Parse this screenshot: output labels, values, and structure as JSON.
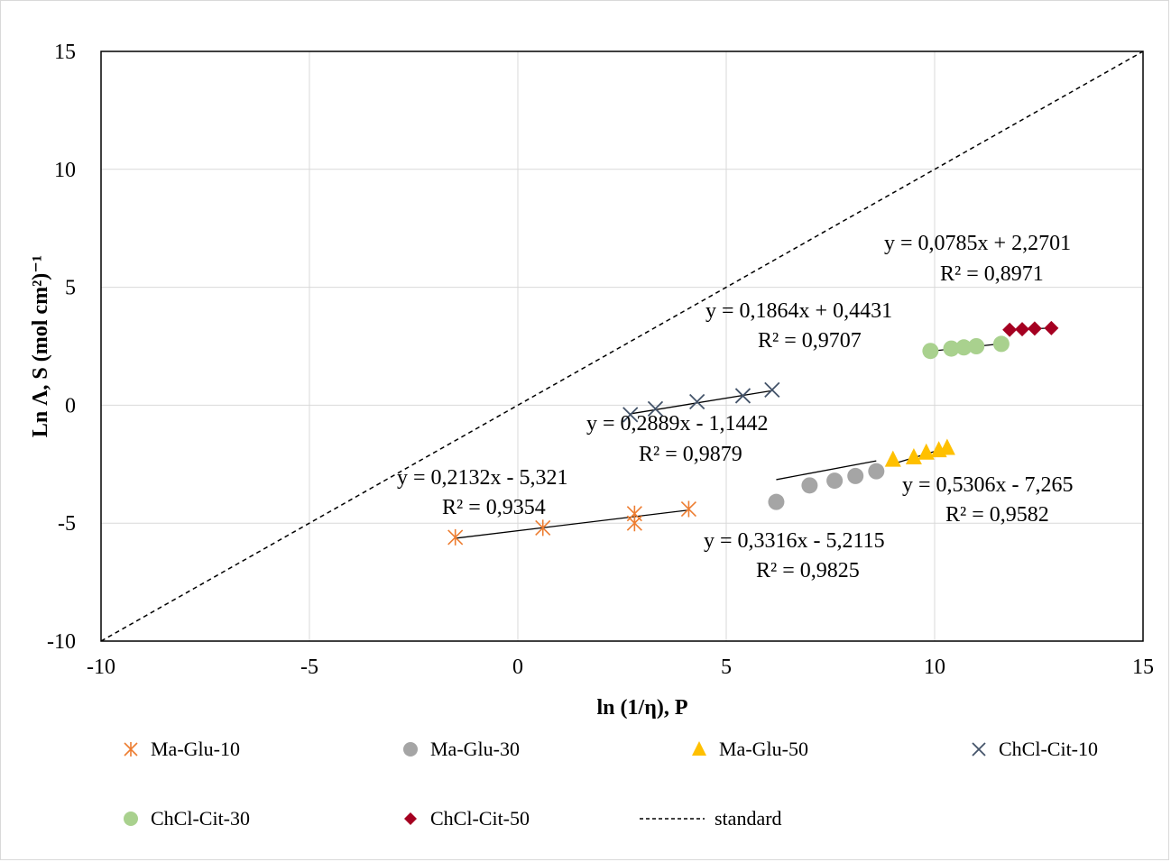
{
  "chart_data": {
    "type": "scatter",
    "xlabel": "ln (1/η), P",
    "ylabel": "Ln Λ, S (mol cm²)⁻¹",
    "xlim": [
      -10,
      15
    ],
    "ylim": [
      -10,
      15
    ],
    "xticks": [
      "-10",
      "-5",
      "0",
      "5",
      "10",
      "15"
    ],
    "yticks": [
      "-10",
      "-5",
      "0",
      "5",
      "10",
      "15"
    ],
    "grid": true,
    "legend_position": "bottom",
    "series": [
      {
        "name": "Ma-Glu-10",
        "marker": "asterisk",
        "color": "#ed7d31",
        "points": [
          [
            -1.5,
            -5.6
          ],
          [
            0.6,
            -5.2
          ],
          [
            2.8,
            -4.6
          ],
          [
            2.8,
            -5.0
          ],
          [
            4.1,
            -4.4
          ]
        ],
        "trend": {
          "slope": 0.2132,
          "intercept": -5.321,
          "x_range": [
            -1.5,
            4.1
          ]
        },
        "equation": "y = 0,2132x - 5,321",
        "r2": "R² = 0,9354"
      },
      {
        "name": "Ma-Glu-30",
        "marker": "circle",
        "color": "#a5a5a5",
        "points": [
          [
            6.2,
            -4.1
          ],
          [
            7.0,
            -3.4
          ],
          [
            7.6,
            -3.2
          ],
          [
            8.1,
            -3.0
          ],
          [
            8.6,
            -2.8
          ]
        ],
        "trend": {
          "slope": 0.3316,
          "intercept": -5.2115,
          "x_range": [
            6.2,
            8.6
          ]
        },
        "equation": "y = 0,3316x - 5,2115",
        "r2": "R² = 0,9825"
      },
      {
        "name": "Ma-Glu-50",
        "marker": "triangle",
        "color": "#ffc000",
        "points": [
          [
            9.0,
            -2.3
          ],
          [
            9.5,
            -2.2
          ],
          [
            9.8,
            -2.0
          ],
          [
            10.1,
            -1.9
          ],
          [
            10.3,
            -1.8
          ]
        ],
        "trend": {
          "slope": 0.5306,
          "intercept": -7.265,
          "x_range": [
            9.0,
            10.3
          ]
        },
        "equation": "y = 0,5306x - 7,265",
        "r2": "R² = 0,9582"
      },
      {
        "name": "ChCl-Cit-10",
        "marker": "x",
        "color": "#44546a",
        "points": [
          [
            2.7,
            -0.4
          ],
          [
            3.3,
            -0.15
          ],
          [
            4.3,
            0.15
          ],
          [
            5.4,
            0.4
          ],
          [
            6.1,
            0.65
          ]
        ],
        "trend": {
          "slope": 0.2889,
          "intercept": -1.1442,
          "x_range": [
            2.7,
            6.1
          ]
        },
        "equation": "y = 0,2889x - 1,1442",
        "r2": "R² = 0,9879"
      },
      {
        "name": "ChCl-Cit-30",
        "marker": "circle",
        "color": "#a9d18e",
        "points": [
          [
            9.9,
            2.3
          ],
          [
            10.4,
            2.4
          ],
          [
            10.7,
            2.45
          ],
          [
            11.0,
            2.5
          ],
          [
            11.6,
            2.6
          ]
        ],
        "trend": {
          "slope": 0.1864,
          "intercept": 0.4431,
          "x_range": [
            9.9,
            11.6
          ]
        },
        "equation": "y = 0,1864x + 0,4431",
        "r2": "R² = 0,9707"
      },
      {
        "name": "ChCl-Cit-50",
        "marker": "diamond",
        "color": "#a50021",
        "points": [
          [
            11.8,
            3.2
          ],
          [
            12.1,
            3.22
          ],
          [
            12.4,
            3.25
          ],
          [
            12.8,
            3.27
          ]
        ],
        "trend": {
          "slope": 0.0785,
          "intercept": 2.2701,
          "x_range": [
            11.8,
            12.8
          ]
        },
        "equation": "y = 0,0785x + 2,2701",
        "r2": "R² = 0,8971"
      },
      {
        "name": "standard",
        "marker": "dashed-line",
        "color": "#000000",
        "points": [
          [
            -10,
            -10
          ],
          [
            15,
            15
          ]
        ]
      }
    ]
  }
}
